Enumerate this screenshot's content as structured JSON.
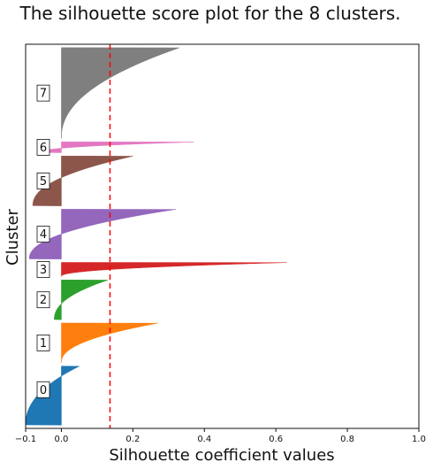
{
  "chart_data": {
    "type": "silhouette",
    "title": "The silhouette score plot for the 8 clusters.",
    "xlabel": "Silhouette coefficient values",
    "ylabel": "Cluster",
    "xlim": [
      -0.1,
      1.0
    ],
    "xticks": [
      -0.1,
      0.0,
      0.2,
      0.4,
      0.6,
      0.8,
      1.0
    ],
    "xtick_labels": [
      "−0.1",
      "0.0",
      "0.2",
      "0.4",
      "0.6",
      "0.8",
      "1.0"
    ],
    "average_silhouette": 0.136,
    "average_line_color": "#ff0000",
    "clusters": [
      {
        "label": "0",
        "size": 175,
        "color": "#1f77b4",
        "max": 0.05,
        "min": -0.1,
        "label_pos": 0.6
      },
      {
        "label": "1",
        "size": 118,
        "color": "#ff7f0e",
        "max": 0.27,
        "min": 0.0,
        "label_pos": 0.5
      },
      {
        "label": "2",
        "size": 118,
        "color": "#2ca02c",
        "max": 0.13,
        "min": -0.02,
        "label_pos": 0.5
      },
      {
        "label": "3",
        "size": 42,
        "color": "#d62728",
        "max": 0.63,
        "min": 0.0,
        "label_pos": 0.5
      },
      {
        "label": "4",
        "size": 148,
        "color": "#9467bd",
        "max": 0.32,
        "min": -0.09,
        "label_pos": 0.5
      },
      {
        "label": "5",
        "size": 148,
        "color": "#8c564b",
        "max": 0.2,
        "min": -0.08,
        "label_pos": 0.5
      },
      {
        "label": "6",
        "size": 32,
        "color": "#e377c2",
        "max": 0.37,
        "min": -0.06,
        "label_pos": 0.5
      },
      {
        "label": "7",
        "size": 270,
        "color": "#7f7f7f",
        "max": 0.33,
        "min": 0.0,
        "label_pos": 0.5
      }
    ]
  }
}
